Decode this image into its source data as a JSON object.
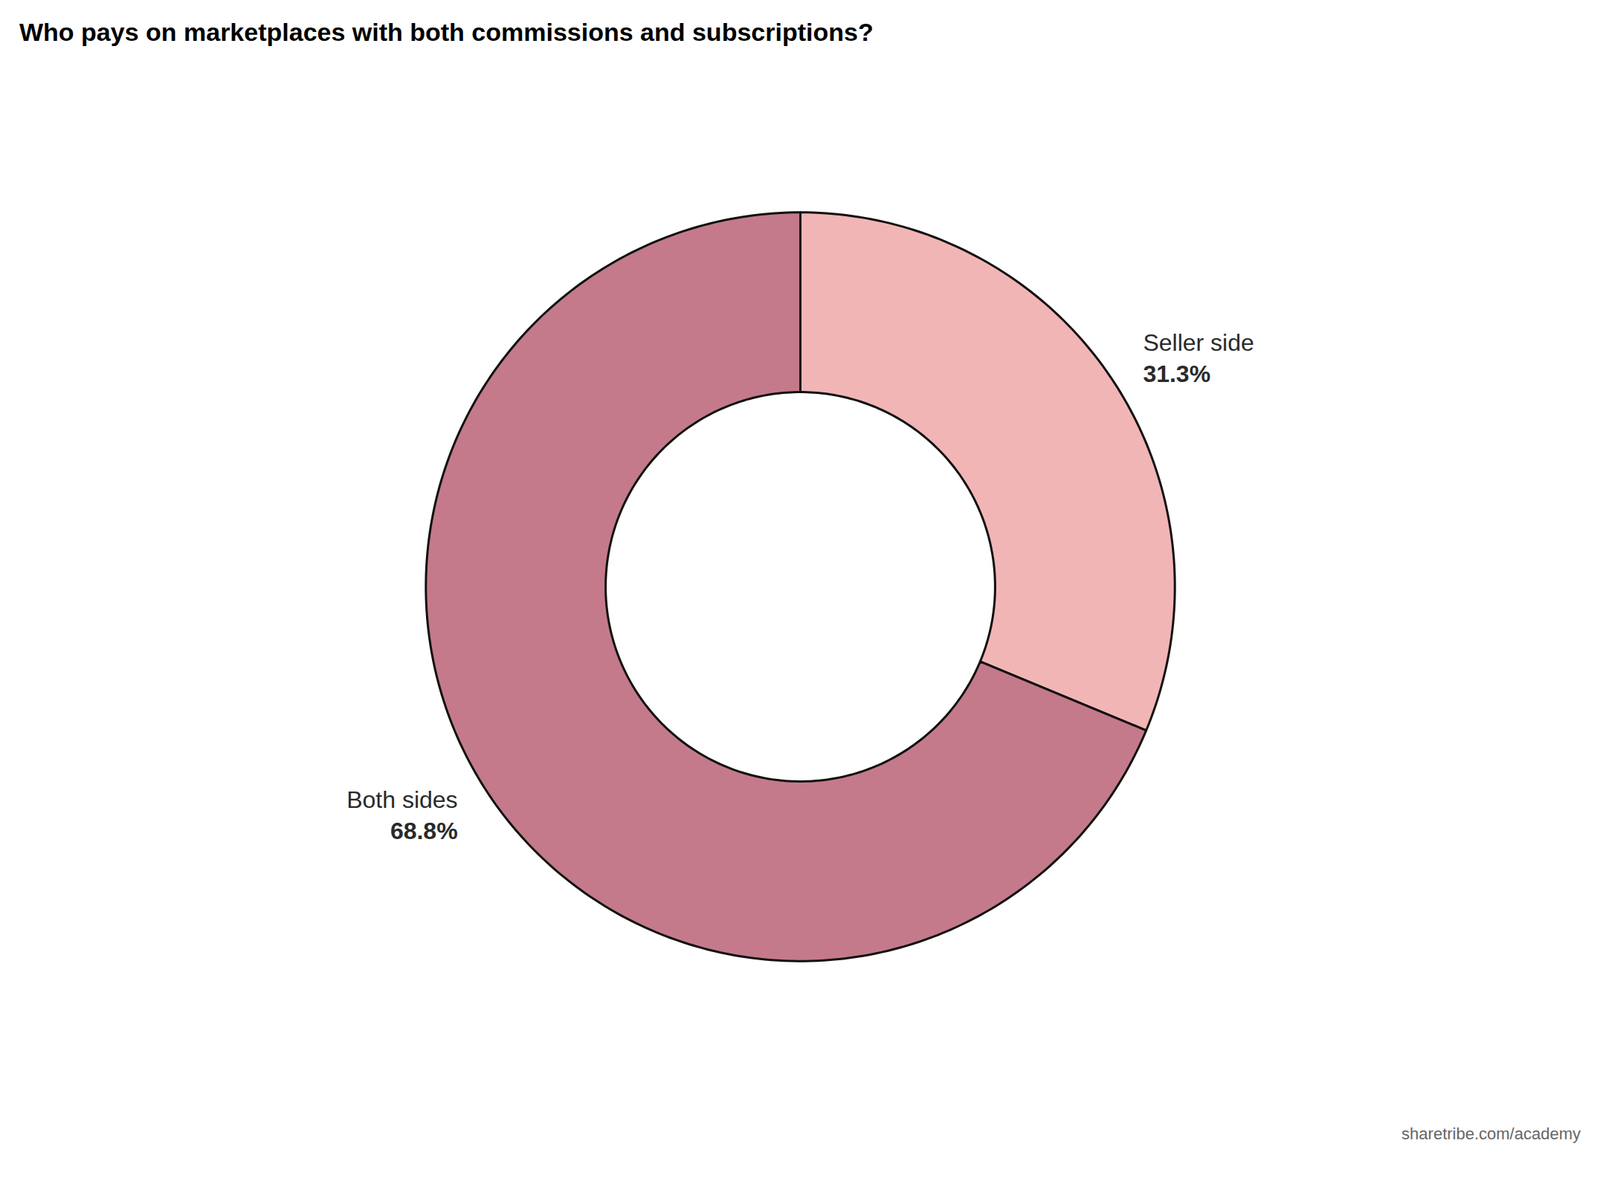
{
  "chart_data": {
    "type": "donut",
    "title": "Who pays on marketplaces with both commissions and subscriptions?",
    "categories": [
      "Seller side",
      "Both sides"
    ],
    "values": [
      31.3,
      68.8
    ],
    "value_labels": [
      "31.3%",
      "68.8%"
    ],
    "colors": [
      "#f2b5b5",
      "#c47a8a"
    ],
    "data_labels": true,
    "annotations": [
      "sharetribe.com/academy"
    ]
  }
}
